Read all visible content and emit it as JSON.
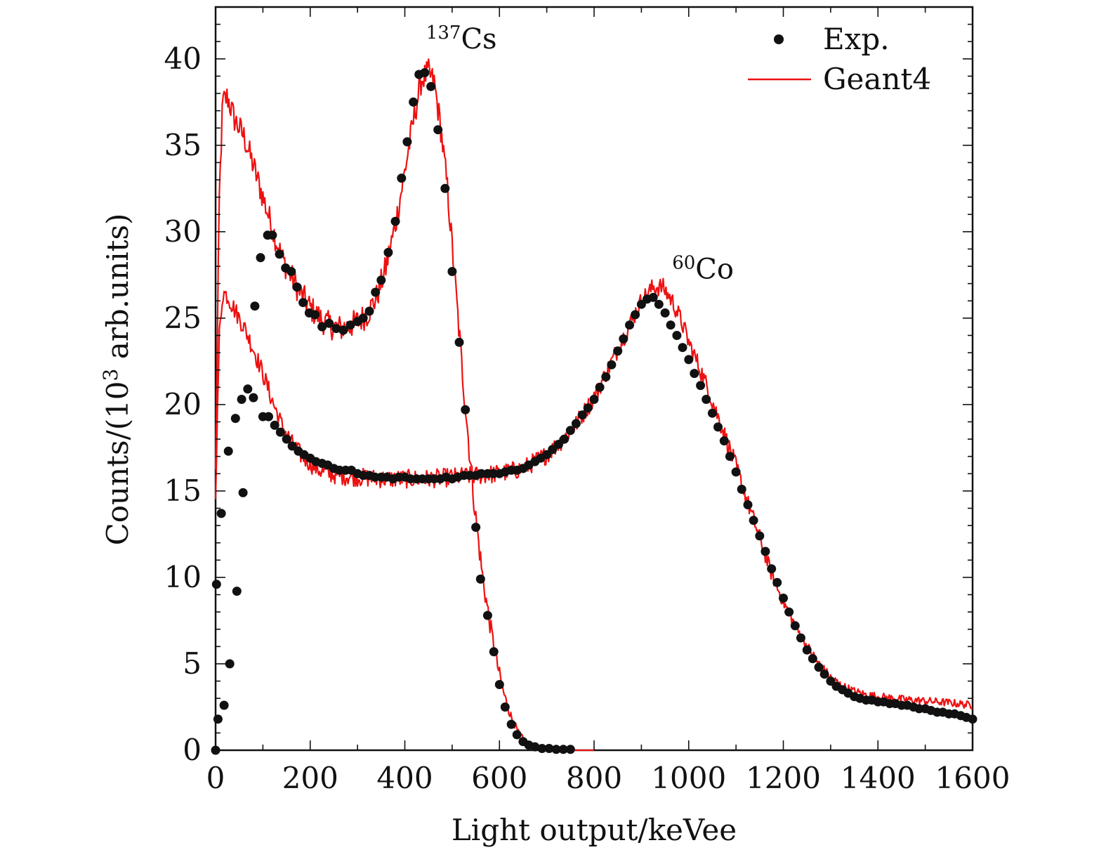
{
  "chart_data": {
    "type": "scatter",
    "xlabel": "Light output/keVee",
    "ylabel_parts": {
      "prefix": "Counts/(10",
      "sup": "3",
      "suffix": " arb.units)"
    },
    "xlim": [
      0,
      1600
    ],
    "ylim": [
      0,
      43
    ],
    "xticks": [
      0,
      200,
      400,
      600,
      800,
      1000,
      1200,
      1400,
      1600
    ],
    "yticks": [
      0,
      5,
      10,
      15,
      20,
      25,
      30,
      35,
      40
    ],
    "grid": false,
    "legend_position": "top-right",
    "legend": [
      {
        "label": "Exp.",
        "marker": "dot"
      },
      {
        "label": "Geant4",
        "marker": "line"
      }
    ],
    "annotations": [
      {
        "sup": "137",
        "text": "Cs",
        "x": 445,
        "y": 40.6
      },
      {
        "sup": "60",
        "text": "Co",
        "x": 965,
        "y": 27.3
      }
    ],
    "colors": {
      "exp": "#111111",
      "geant4": "#ee1111",
      "geant4_edge": "#aa1040"
    },
    "series": [
      {
        "name": "Exp.",
        "spectrum": "137Cs",
        "kind": "points",
        "points": [
          [
            0,
            0
          ],
          [
            2,
            9.6
          ],
          [
            5,
            1.8
          ],
          [
            12,
            13.7
          ],
          [
            18,
            2.6
          ],
          [
            27,
            17.3
          ],
          [
            30,
            5.0
          ],
          [
            42,
            19.2
          ],
          [
            45,
            9.2
          ],
          [
            55,
            20.3
          ],
          [
            58,
            14.9
          ],
          [
            68,
            20.9
          ],
          [
            80,
            20.4
          ],
          [
            83,
            25.7
          ],
          [
            95,
            28.5
          ],
          [
            110,
            29.8
          ],
          [
            120,
            29.8
          ],
          [
            135,
            28.7
          ],
          [
            148,
            27.9
          ],
          [
            160,
            27.7
          ],
          [
            172,
            26.8
          ],
          [
            185,
            25.9
          ],
          [
            198,
            25.3
          ],
          [
            210,
            25.2
          ],
          [
            225,
            24.5
          ],
          [
            240,
            24.7
          ],
          [
            255,
            24.4
          ],
          [
            270,
            24.3
          ],
          [
            285,
            24.6
          ],
          [
            300,
            24.8
          ],
          [
            312,
            25.0
          ],
          [
            325,
            25.4
          ],
          [
            338,
            26.5
          ],
          [
            350,
            27.2
          ],
          [
            365,
            28.8
          ],
          [
            380,
            30.6
          ],
          [
            393,
            33.1
          ],
          [
            405,
            35.2
          ],
          [
            418,
            37.5
          ],
          [
            430,
            39.1
          ],
          [
            442,
            39.2
          ],
          [
            455,
            38.4
          ],
          [
            470,
            35.9
          ],
          [
            485,
            32.5
          ],
          [
            500,
            27.7
          ],
          [
            515,
            23.6
          ],
          [
            528,
            19.7
          ],
          [
            550,
            12.9
          ],
          [
            560,
            9.9
          ],
          [
            575,
            7.8
          ],
          [
            588,
            5.7
          ],
          [
            600,
            3.8
          ],
          [
            612,
            2.5
          ],
          [
            625,
            1.5
          ],
          [
            637,
            0.9
          ],
          [
            650,
            0.5
          ],
          [
            662,
            0.3
          ],
          [
            675,
            0.2
          ],
          [
            690,
            0.1
          ],
          [
            705,
            0.1
          ],
          [
            720,
            0.05
          ],
          [
            735,
            0.05
          ],
          [
            750,
            0.05
          ]
        ]
      },
      {
        "name": "Exp.",
        "spectrum": "60Co",
        "kind": "points",
        "points": [
          [
            100,
            19.3
          ],
          [
            112,
            19.3
          ],
          [
            125,
            18.8
          ],
          [
            137,
            18.4
          ],
          [
            150,
            18.0
          ],
          [
            162,
            17.6
          ],
          [
            175,
            17.3
          ],
          [
            187,
            17.1
          ],
          [
            200,
            16.9
          ],
          [
            212,
            16.7
          ],
          [
            225,
            16.6
          ],
          [
            237,
            16.5
          ],
          [
            250,
            16.3
          ],
          [
            262,
            16.2
          ],
          [
            275,
            16.2
          ],
          [
            287,
            16.2
          ],
          [
            300,
            16.0
          ],
          [
            312,
            15.9
          ],
          [
            325,
            15.9
          ],
          [
            337,
            15.8
          ],
          [
            350,
            15.8
          ],
          [
            362,
            15.8
          ],
          [
            375,
            15.7
          ],
          [
            387,
            15.8
          ],
          [
            400,
            15.8
          ],
          [
            412,
            15.7
          ],
          [
            425,
            15.7
          ],
          [
            437,
            15.7
          ],
          [
            450,
            15.7
          ],
          [
            462,
            15.7
          ],
          [
            475,
            15.7
          ],
          [
            487,
            15.8
          ],
          [
            500,
            15.7
          ],
          [
            512,
            15.8
          ],
          [
            525,
            15.9
          ],
          [
            537,
            15.9
          ],
          [
            550,
            15.9
          ],
          [
            562,
            16.0
          ],
          [
            575,
            16.0
          ],
          [
            587,
            16.0
          ],
          [
            600,
            16.0
          ],
          [
            612,
            16.1
          ],
          [
            625,
            16.2
          ],
          [
            637,
            16.2
          ],
          [
            650,
            16.3
          ],
          [
            662,
            16.5
          ],
          [
            675,
            16.7
          ],
          [
            687,
            16.9
          ],
          [
            700,
            17.1
          ],
          [
            712,
            17.4
          ],
          [
            725,
            17.7
          ],
          [
            737,
            18.0
          ],
          [
            750,
            18.5
          ],
          [
            762,
            18.9
          ],
          [
            775,
            19.4
          ],
          [
            787,
            19.8
          ],
          [
            800,
            20.3
          ],
          [
            812,
            21.0
          ],
          [
            825,
            21.6
          ],
          [
            837,
            22.3
          ],
          [
            850,
            23.1
          ],
          [
            862,
            23.8
          ],
          [
            875,
            24.6
          ],
          [
            887,
            25.2
          ],
          [
            900,
            25.8
          ],
          [
            912,
            26.1
          ],
          [
            925,
            26.2
          ],
          [
            937,
            25.8
          ],
          [
            950,
            25.3
          ],
          [
            962,
            24.6
          ],
          [
            975,
            24.0
          ],
          [
            987,
            23.3
          ],
          [
            1000,
            22.6
          ],
          [
            1012,
            21.8
          ],
          [
            1025,
            21.1
          ],
          [
            1037,
            20.3
          ],
          [
            1050,
            19.5
          ],
          [
            1062,
            18.7
          ],
          [
            1075,
            17.9
          ],
          [
            1087,
            17.0
          ],
          [
            1100,
            16.1
          ],
          [
            1112,
            15.1
          ],
          [
            1125,
            14.2
          ],
          [
            1137,
            13.3
          ],
          [
            1150,
            12.4
          ],
          [
            1162,
            11.5
          ],
          [
            1175,
            10.5
          ],
          [
            1187,
            9.7
          ],
          [
            1200,
            8.8
          ],
          [
            1212,
            8.0
          ],
          [
            1225,
            7.2
          ],
          [
            1237,
            6.5
          ],
          [
            1250,
            5.8
          ],
          [
            1262,
            5.3
          ],
          [
            1275,
            4.8
          ],
          [
            1287,
            4.4
          ],
          [
            1300,
            4.0
          ],
          [
            1312,
            3.7
          ],
          [
            1325,
            3.5
          ],
          [
            1337,
            3.3
          ],
          [
            1350,
            3.1
          ],
          [
            1362,
            3.0
          ],
          [
            1375,
            2.9
          ],
          [
            1387,
            2.9
          ],
          [
            1400,
            2.8
          ],
          [
            1412,
            2.8
          ],
          [
            1425,
            2.7
          ],
          [
            1437,
            2.7
          ],
          [
            1450,
            2.6
          ],
          [
            1462,
            2.6
          ],
          [
            1475,
            2.5
          ],
          [
            1487,
            2.4
          ],
          [
            1500,
            2.4
          ],
          [
            1512,
            2.3
          ],
          [
            1525,
            2.2
          ],
          [
            1537,
            2.2
          ],
          [
            1550,
            2.1
          ],
          [
            1562,
            2.1
          ],
          [
            1575,
            2.0
          ],
          [
            1587,
            1.9
          ],
          [
            1600,
            1.8
          ]
        ]
      },
      {
        "name": "Geant4",
        "spectrum": "137Cs",
        "kind": "line",
        "noise_amplitude": 0.8,
        "points": [
          [
            0,
            16
          ],
          [
            8,
            32
          ],
          [
            15,
            37.5
          ],
          [
            25,
            37.8
          ],
          [
            40,
            36.5
          ],
          [
            60,
            35.5
          ],
          [
            80,
            33.8
          ],
          [
            100,
            32.0
          ],
          [
            120,
            30.2
          ],
          [
            140,
            28.5
          ],
          [
            160,
            27.4
          ],
          [
            180,
            26.4
          ],
          [
            200,
            25.6
          ],
          [
            220,
            25.0
          ],
          [
            240,
            24.6
          ],
          [
            260,
            24.4
          ],
          [
            280,
            24.5
          ],
          [
            300,
            24.8
          ],
          [
            320,
            25.2
          ],
          [
            340,
            26.2
          ],
          [
            360,
            27.9
          ],
          [
            380,
            30.4
          ],
          [
            400,
            33.5
          ],
          [
            420,
            36.7
          ],
          [
            435,
            38.8
          ],
          [
            450,
            39.2
          ],
          [
            462,
            38.6
          ],
          [
            475,
            36.2
          ],
          [
            490,
            32.5
          ],
          [
            505,
            27.5
          ],
          [
            520,
            22.4
          ],
          [
            535,
            17.8
          ],
          [
            550,
            13.4
          ],
          [
            565,
            9.9
          ],
          [
            580,
            7.3
          ],
          [
            595,
            5.0
          ],
          [
            610,
            3.2
          ],
          [
            625,
            1.9
          ],
          [
            640,
            1.0
          ],
          [
            655,
            0.5
          ],
          [
            670,
            0.2
          ],
          [
            690,
            0.05
          ],
          [
            710,
            0
          ],
          [
            800,
            0
          ]
        ]
      },
      {
        "name": "Geant4",
        "spectrum": "60Co",
        "kind": "line",
        "noise_amplitude": 0.55,
        "points": [
          [
            0,
            15
          ],
          [
            8,
            24
          ],
          [
            15,
            26.5
          ],
          [
            25,
            26.3
          ],
          [
            40,
            25.5
          ],
          [
            60,
            24.5
          ],
          [
            80,
            23.2
          ],
          [
            100,
            21.8
          ],
          [
            120,
            20.2
          ],
          [
            140,
            18.8
          ],
          [
            160,
            17.8
          ],
          [
            180,
            17.1
          ],
          [
            200,
            16.6
          ],
          [
            220,
            16.2
          ],
          [
            240,
            16.0
          ],
          [
            260,
            15.9
          ],
          [
            300,
            15.8
          ],
          [
            350,
            15.7
          ],
          [
            400,
            15.7
          ],
          [
            450,
            15.7
          ],
          [
            500,
            15.8
          ],
          [
            550,
            15.9
          ],
          [
            600,
            16.0
          ],
          [
            650,
            16.3
          ],
          [
            700,
            17.1
          ],
          [
            750,
            18.4
          ],
          [
            800,
            20.4
          ],
          [
            850,
            23.2
          ],
          [
            900,
            26.0
          ],
          [
            925,
            26.8
          ],
          [
            945,
            26.8
          ],
          [
            965,
            26.0
          ],
          [
            985,
            24.8
          ],
          [
            1000,
            23.6
          ],
          [
            1025,
            22.0
          ],
          [
            1050,
            20.2
          ],
          [
            1075,
            18.3
          ],
          [
            1100,
            16.4
          ],
          [
            1125,
            14.3
          ],
          [
            1150,
            12.3
          ],
          [
            1175,
            10.2
          ],
          [
            1200,
            8.6
          ],
          [
            1225,
            7.2
          ],
          [
            1250,
            6.0
          ],
          [
            1275,
            5.0
          ],
          [
            1300,
            4.2
          ],
          [
            1325,
            3.7
          ],
          [
            1350,
            3.4
          ],
          [
            1375,
            3.2
          ],
          [
            1400,
            3.1
          ],
          [
            1450,
            2.95
          ],
          [
            1500,
            2.85
          ],
          [
            1550,
            2.75
          ],
          [
            1600,
            2.6
          ]
        ]
      }
    ]
  }
}
